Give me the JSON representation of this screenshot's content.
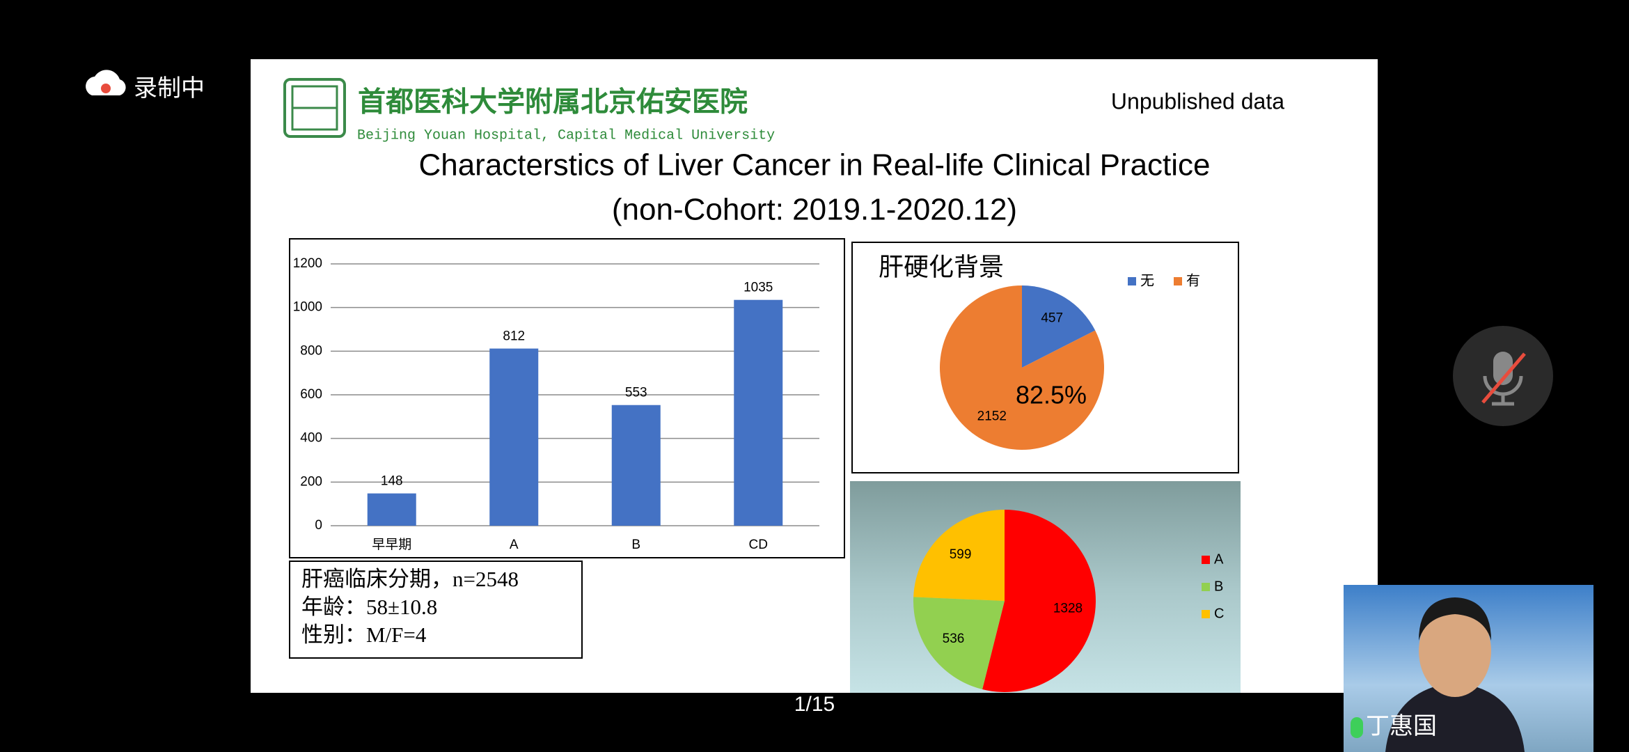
{
  "recording": "录制中",
  "slide": {
    "hospital_cn": "首都医科大学附属北京佑安医院",
    "hospital_en": "Beijing Youan Hospital, Capital Medical University",
    "note": "Unpublished data",
    "title": "Characterstics of  Liver Cancer in Real-life Clinical Practice",
    "subtitle": "(non-Cohort:   2019.1-2020.12)",
    "info": [
      "肝癌临床分期，n=2548",
      "年龄：58±10.8",
      "性别：M/F=4"
    ]
  },
  "chart_data": [
    {
      "type": "bar",
      "categories": [
        "早早期",
        "A",
        "B",
        "CD"
      ],
      "values": [
        148,
        812,
        553,
        1035
      ],
      "color": "#4472c4",
      "ylim": [
        0,
        1200
      ],
      "yticks": [
        0,
        200,
        400,
        600,
        800,
        1000,
        1200
      ],
      "grid": true
    },
    {
      "type": "pie",
      "title": "肝硬化背景",
      "categories": [
        "无",
        "有"
      ],
      "values": [
        457,
        2152
      ],
      "colors": [
        "#4472c4",
        "#ed7d31"
      ],
      "annotation": "82.5%",
      "legend": "top"
    },
    {
      "type": "pie",
      "categories": [
        "A",
        "B",
        "C"
      ],
      "values": [
        1328,
        536,
        599
      ],
      "colors": [
        "#ff0000",
        "#92d050",
        "#ffc000"
      ],
      "legend": "right"
    }
  ],
  "page_indicator": "1/15",
  "speaker": "丁惠国"
}
